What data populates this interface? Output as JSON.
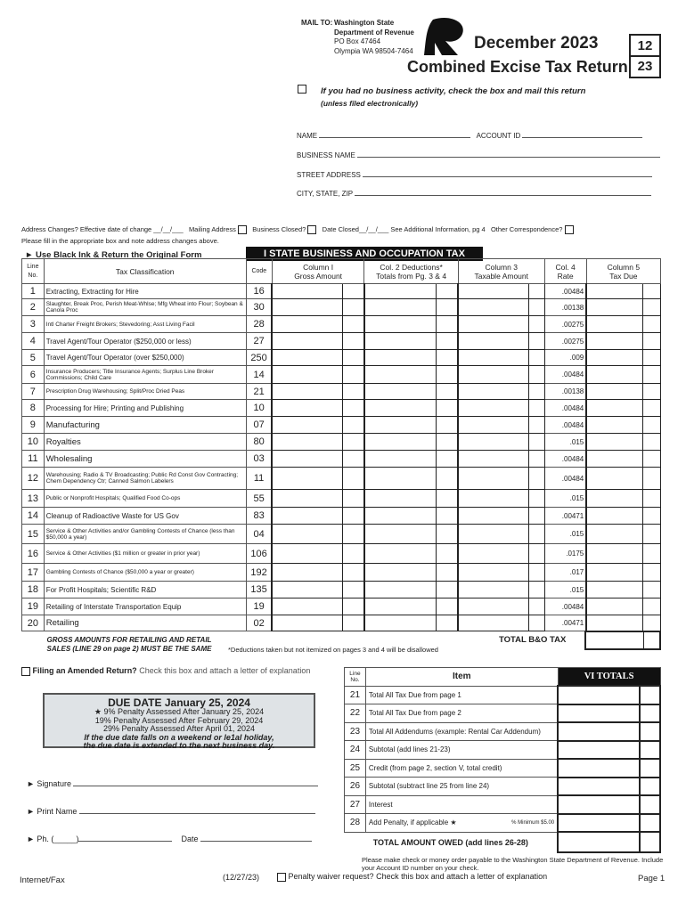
{
  "header": {
    "mail_to_label": "MAIL TO:",
    "address": [
      "Washington State",
      "Department of Revenue",
      "PO Box 47464",
      "Olympia WA 98504-7464"
    ],
    "period": "December 2023",
    "title": "Combined Excise Tax Return",
    "month_box": "12",
    "year_box": "23",
    "no_activity": "If you had no business activity, check the box and mail this return",
    "no_activity_note": "(unless filed electronically)"
  },
  "fields": {
    "name": "NAME",
    "account_id": "ACCOUNT ID",
    "business_name": "BUSINESS NAME",
    "street": "STREET ADDRESS",
    "city": "CITY, STATE, ZIP"
  },
  "changes": {
    "address_changes": "Address Changes?  Effective date of change __/__/___",
    "mailing": "Mailing Address",
    "closed": "Business Closed?",
    "date_closed": "Date Closed__/__/___ See Additional Information, pg 4",
    "other": "Other Correspondence?",
    "fill_note": "Please fill in the appropriate box and note address changes above."
  },
  "section1": {
    "ink_note": "► Use Black Ink & Return the Original Form",
    "title": "I STATE BUSINESS AND OCCUPATION TAX",
    "headers": {
      "line": "Line No.",
      "class": "Tax Classification",
      "code": "Code",
      "col1": "Column I",
      "col1b": "Gross Amount",
      "col2": "Col. 2 Deductions*",
      "col2b": "Totals from Pg. 3 & 4",
      "col3": "Column 3",
      "col3b": "Taxable Amount",
      "col4": "Col. 4",
      "col4b": "Rate",
      "col5": "Column 5",
      "col5b": "Tax Due"
    },
    "rows": [
      {
        "n": "1",
        "c": "Extracting, Extracting for Hire",
        "code": "16",
        "rate": ".00484"
      },
      {
        "n": "2",
        "c": "Slaughter, Break Proc, Perish Meat-Whlse; Mfg Wheat into Flour; Soybean & Canola Proc",
        "code": "30",
        "rate": ".00138"
      },
      {
        "n": "3",
        "c": "Intl Charter Freight Brokers; Stevedoring; Asst Living Facil",
        "code": "28",
        "rate": ".00275"
      },
      {
        "n": "4",
        "c": "Travel Agent/Tour Operator ($250,000 or less)",
        "code": "27",
        "rate": ".00275"
      },
      {
        "n": "5",
        "c": "Travel Agent/Tour Operator (over $250,000)",
        "code": "250",
        "rate": ".009"
      },
      {
        "n": "6",
        "c": "Insurance Producers; Title Insurance Agents; Surplus Line Broker Commissions; Child Care",
        "code": "14",
        "rate": ".00484"
      },
      {
        "n": "7",
        "c": "Prescription Drug Warehousing; Split/Proc Dried Peas",
        "code": "21",
        "rate": ".00138"
      },
      {
        "n": "8",
        "c": "Processing for Hire; Printing and Publishing",
        "code": "10",
        "rate": ".00484"
      },
      {
        "n": "9",
        "c": "Manufacturing",
        "code": "07",
        "rate": ".00484"
      },
      {
        "n": "10",
        "c": "Royalties",
        "code": "80",
        "rate": ".015"
      },
      {
        "n": "11",
        "c": "Wholesaling",
        "code": "03",
        "rate": ".00484"
      },
      {
        "n": "12",
        "c": "Warehousing; Radio & TV Broadcasting; Public Rd Const Gov Contracting; Chem Dependency Ctr; Canned Salmon Labelers",
        "code": "11",
        "rate": ".00484"
      },
      {
        "n": "13",
        "c": "Public or Nonprofit Hospitals; Qualified Food Co-ops",
        "code": "55",
        "rate": ".015"
      },
      {
        "n": "14",
        "c": "Cleanup of Radioactive Waste for US Gov",
        "code": "83",
        "rate": ".00471"
      },
      {
        "n": "15",
        "c": "Service & Other Activities and/or Gambling Contests of Chance (less than $50,000 a year)",
        "code": "04",
        "rate": ".015"
      },
      {
        "n": "16",
        "c": "Service & Other Activities ($1 million or greater in prior year)",
        "code": "106",
        "rate": ".0175"
      },
      {
        "n": "17",
        "c": "Gambling Contests of Chance ($50,000 a year or greater)",
        "code": "192",
        "rate": ".017"
      },
      {
        "n": "18",
        "c": "For Profit Hospitals; Scientific R&D",
        "code": "135",
        "rate": ".015"
      },
      {
        "n": "19",
        "c": "Retailing of Interstate Transportation Equip",
        "code": "19",
        "rate": ".00484"
      },
      {
        "n": "20",
        "c": "Retailing",
        "code": "02",
        "rate": ".00471"
      }
    ],
    "retail_note": "GROSS AMOUNTS FOR RETAILING AND RETAIL SALES (LINE 29 on page 2) MUST BE THE SAME",
    "deductions_note": "*Deductions taken but not itemized on pages 3 and 4 will be disallowed",
    "total_bo": "TOTAL B&O TAX"
  },
  "amended": {
    "label": "Filing an Amended Return?",
    "note": "Check this box and attach a letter of explanation"
  },
  "due": {
    "title": "DUE DATE January 25, 2024",
    "p1": "★ 9% Penalty Assessed After January 25, 2024",
    "p2": "19% Penalty Assessed After February 29, 2024",
    "p3": "29% Penalty Assessed After April 01, 2024",
    "w1": "If the due date falls on a weekend or le1al holiday,",
    "w2": "the due date is extended to the next business day."
  },
  "sign": {
    "signature": "Signature",
    "print_name": "Print Name",
    "phone": "Ph. (_____)",
    "date": "Date"
  },
  "totals": {
    "line_hdr": "Line No.",
    "item_hdr": "Item",
    "title": "VI TOTALS",
    "rows": [
      {
        "n": "21",
        "t": "Total All Tax Due from page 1"
      },
      {
        "n": "22",
        "t": "Total All Tax Due from page 2"
      },
      {
        "n": "23",
        "t": "Total All Addendums (example: Rental Car Addendum)"
      },
      {
        "n": "24",
        "t": "Subtotal (add lines 21-23)"
      },
      {
        "n": "25",
        "t": "Credit (from page 2, section V, total credit)"
      },
      {
        "n": "26",
        "t": "Subtotal (subtract line 25 from line 24)"
      },
      {
        "n": "27",
        "t": "Interest"
      },
      {
        "n": "28",
        "t": "Add Penalty, if applicable ★",
        "extra": "% Minimum $5.00"
      }
    ],
    "owed": "TOTAL AMOUNT OWED (add lines 26-28)"
  },
  "footer": {
    "payable": "Please make check or money order payable to the Washington State Department of Revenue. Include your Account ID number on your check.",
    "internet": "Internet/Fax",
    "rev": "(12/27/23)",
    "waiver": "Penalty waiver request? Check this box and attach a letter of explanation",
    "page": "Page 1"
  }
}
